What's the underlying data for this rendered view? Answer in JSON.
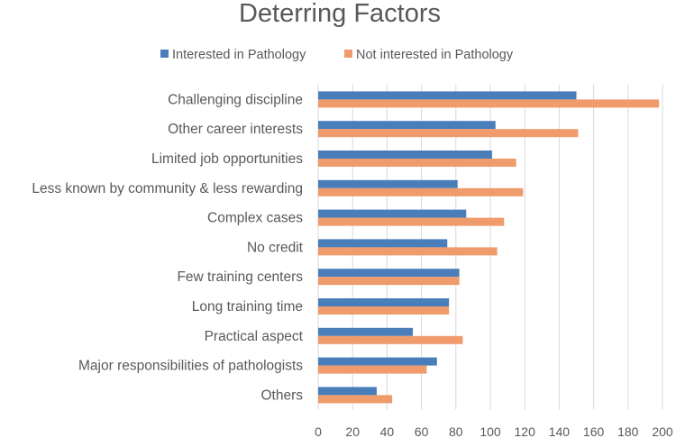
{
  "chart_data": {
    "type": "bar",
    "orientation": "horizontal",
    "title": "Deterring Factors",
    "xlabel": "",
    "ylabel": "",
    "xlim": [
      0,
      200
    ],
    "ticks": [
      0,
      20,
      40,
      60,
      80,
      100,
      120,
      140,
      160,
      180,
      200
    ],
    "grid": true,
    "legend_position": "top",
    "categories": [
      "Challenging discipline",
      "Other career interests",
      "Limited job opportunities",
      "Less known by community & less rewarding",
      "Complex cases",
      "No credit",
      "Few training centers",
      "Long training time",
      "Practical aspect",
      "Major responsibilities of pathologists",
      "Others"
    ],
    "series": [
      {
        "name": "Interested in Pathology",
        "color": "#4a7ebb",
        "values": [
          150,
          103,
          101,
          81,
          86,
          75,
          82,
          76,
          55,
          69,
          34
        ]
      },
      {
        "name": "Not interested in Pathology",
        "color": "#ef9b6b",
        "values": [
          198,
          151,
          115,
          119,
          108,
          104,
          82,
          76,
          84,
          63,
          43
        ]
      }
    ]
  }
}
